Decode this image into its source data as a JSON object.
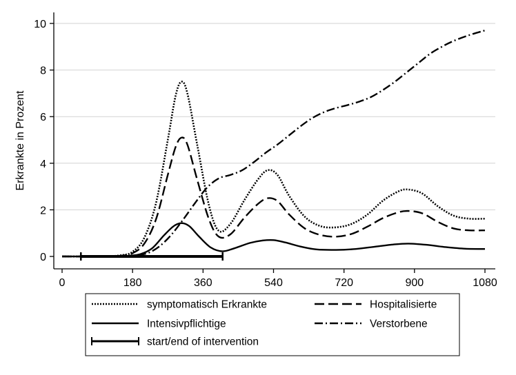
{
  "chart_data": {
    "type": "line",
    "xlabel": "",
    "ylabel": "Erkrankte in Prozent",
    "xlim": [
      0,
      1080
    ],
    "ylim": [
      0,
      10
    ],
    "xticks": [
      "0",
      "180",
      "360",
      "540",
      "720",
      "900",
      "1080"
    ],
    "yticks": [
      "0",
      "2",
      "4",
      "6",
      "8",
      "10"
    ],
    "grid": "horizontal",
    "legend_position": "bottom",
    "series": [
      {
        "name": "symptomatisch Erkrankte",
        "style": "dotted",
        "points": [
          [
            0,
            0
          ],
          [
            100,
            0
          ],
          [
            150,
            0.05
          ],
          [
            180,
            0.2
          ],
          [
            210,
            0.8
          ],
          [
            240,
            2.3
          ],
          [
            270,
            5.0
          ],
          [
            290,
            6.9
          ],
          [
            305,
            7.5
          ],
          [
            320,
            7.0
          ],
          [
            345,
            4.8
          ],
          [
            375,
            2.2
          ],
          [
            400,
            1.1
          ],
          [
            430,
            1.4
          ],
          [
            465,
            2.4
          ],
          [
            500,
            3.3
          ],
          [
            525,
            3.7
          ],
          [
            550,
            3.5
          ],
          [
            580,
            2.6
          ],
          [
            620,
            1.7
          ],
          [
            660,
            1.3
          ],
          [
            700,
            1.25
          ],
          [
            740,
            1.4
          ],
          [
            780,
            1.8
          ],
          [
            820,
            2.4
          ],
          [
            860,
            2.8
          ],
          [
            885,
            2.87
          ],
          [
            920,
            2.7
          ],
          [
            960,
            2.15
          ],
          [
            1000,
            1.75
          ],
          [
            1040,
            1.62
          ],
          [
            1080,
            1.62
          ]
        ]
      },
      {
        "name": "Hospitalisierte",
        "style": "dashed",
        "points": [
          [
            0,
            0
          ],
          [
            110,
            0
          ],
          [
            150,
            0.03
          ],
          [
            180,
            0.14
          ],
          [
            210,
            0.55
          ],
          [
            240,
            1.6
          ],
          [
            270,
            3.5
          ],
          [
            290,
            4.7
          ],
          [
            305,
            5.1
          ],
          [
            320,
            4.8
          ],
          [
            345,
            3.3
          ],
          [
            375,
            1.6
          ],
          [
            400,
            0.85
          ],
          [
            430,
            0.95
          ],
          [
            465,
            1.65
          ],
          [
            500,
            2.25
          ],
          [
            525,
            2.5
          ],
          [
            550,
            2.38
          ],
          [
            580,
            1.8
          ],
          [
            620,
            1.2
          ],
          [
            660,
            0.92
          ],
          [
            700,
            0.85
          ],
          [
            740,
            0.97
          ],
          [
            780,
            1.28
          ],
          [
            820,
            1.65
          ],
          [
            860,
            1.9
          ],
          [
            885,
            1.95
          ],
          [
            920,
            1.85
          ],
          [
            960,
            1.48
          ],
          [
            1000,
            1.2
          ],
          [
            1040,
            1.12
          ],
          [
            1080,
            1.12
          ]
        ]
      },
      {
        "name": "Intensivpflichtige",
        "style": "solid",
        "points": [
          [
            0,
            0
          ],
          [
            130,
            0
          ],
          [
            170,
            0.03
          ],
          [
            200,
            0.1
          ],
          [
            230,
            0.35
          ],
          [
            260,
            0.9
          ],
          [
            285,
            1.3
          ],
          [
            305,
            1.43
          ],
          [
            325,
            1.3
          ],
          [
            350,
            0.85
          ],
          [
            380,
            0.38
          ],
          [
            410,
            0.22
          ],
          [
            440,
            0.35
          ],
          [
            480,
            0.58
          ],
          [
            510,
            0.68
          ],
          [
            540,
            0.7
          ],
          [
            570,
            0.6
          ],
          [
            610,
            0.42
          ],
          [
            650,
            0.3
          ],
          [
            700,
            0.28
          ],
          [
            750,
            0.32
          ],
          [
            800,
            0.42
          ],
          [
            850,
            0.52
          ],
          [
            885,
            0.55
          ],
          [
            930,
            0.5
          ],
          [
            980,
            0.4
          ],
          [
            1030,
            0.33
          ],
          [
            1080,
            0.32
          ]
        ]
      },
      {
        "name": "Verstorbene",
        "style": "dashdot",
        "points": [
          [
            0,
            0
          ],
          [
            150,
            0
          ],
          [
            190,
            0.05
          ],
          [
            220,
            0.15
          ],
          [
            250,
            0.45
          ],
          [
            280,
            0.95
          ],
          [
            310,
            1.6
          ],
          [
            340,
            2.3
          ],
          [
            370,
            2.95
          ],
          [
            400,
            3.35
          ],
          [
            430,
            3.5
          ],
          [
            460,
            3.7
          ],
          [
            490,
            4.05
          ],
          [
            520,
            4.45
          ],
          [
            550,
            4.8
          ],
          [
            580,
            5.2
          ],
          [
            610,
            5.6
          ],
          [
            640,
            5.95
          ],
          [
            670,
            6.2
          ],
          [
            700,
            6.37
          ],
          [
            730,
            6.5
          ],
          [
            760,
            6.65
          ],
          [
            790,
            6.85
          ],
          [
            820,
            7.15
          ],
          [
            850,
            7.5
          ],
          [
            880,
            7.9
          ],
          [
            910,
            8.3
          ],
          [
            940,
            8.7
          ],
          [
            970,
            9.0
          ],
          [
            1000,
            9.25
          ],
          [
            1040,
            9.5
          ],
          [
            1080,
            9.7
          ]
        ]
      }
    ],
    "intervention": {
      "name": "start/end of intervention",
      "start": 48,
      "end": 410,
      "y": 0
    },
    "legend": [
      {
        "label": "symptomatisch Erkrankte",
        "style": "dotted"
      },
      {
        "label": "Hospitalisierte",
        "style": "dashed"
      },
      {
        "label": "Intensivpflichtige",
        "style": "solid"
      },
      {
        "label": "Verstorbene",
        "style": "dashdot"
      },
      {
        "label": "start/end of intervention",
        "style": "capped"
      }
    ]
  }
}
